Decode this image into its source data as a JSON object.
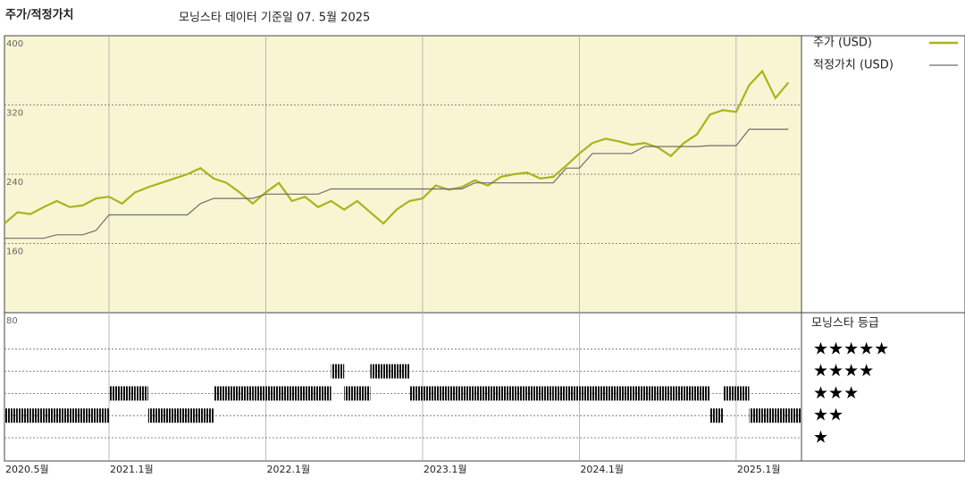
{
  "chart_data": [
    {
      "type": "line",
      "title": "주가/적정가치",
      "subtitle": "모닝스타 데이터 기준일 07. 5월 2025",
      "x": [
        "2020-05",
        "2020-06",
        "2020-07",
        "2020-08",
        "2020-09",
        "2020-10",
        "2020-11",
        "2020-12",
        "2021-01",
        "2021-02",
        "2021-03",
        "2021-04",
        "2021-05",
        "2021-06",
        "2021-07",
        "2021-08",
        "2021-09",
        "2021-10",
        "2021-11",
        "2021-12",
        "2022-01",
        "2022-02",
        "2022-03",
        "2022-04",
        "2022-05",
        "2022-06",
        "2022-07",
        "2022-08",
        "2022-09",
        "2022-10",
        "2022-11",
        "2022-12",
        "2023-01",
        "2023-02",
        "2023-03",
        "2023-04",
        "2023-05",
        "2023-06",
        "2023-07",
        "2023-08",
        "2023-09",
        "2023-10",
        "2023-11",
        "2023-12",
        "2024-01",
        "2024-02",
        "2024-03",
        "2024-04",
        "2024-05",
        "2024-06",
        "2024-07",
        "2024-08",
        "2024-09",
        "2024-10",
        "2024-11",
        "2024-12",
        "2025-01",
        "2025-02",
        "2025-03",
        "2025-04",
        "2025-05"
      ],
      "series": [
        {
          "name": "주가 (USD)",
          "color": "#a8b41e",
          "values": [
            183,
            196,
            194,
            202,
            209,
            202,
            204,
            212,
            214,
            206,
            219,
            225,
            230,
            235,
            240,
            247,
            235,
            230,
            219,
            206,
            219,
            230,
            209,
            214,
            202,
            209,
            199,
            209,
            196,
            183,
            199,
            209,
            212,
            227,
            222,
            225,
            233,
            227,
            237,
            240,
            242,
            235,
            237,
            250,
            264,
            276,
            281,
            278,
            274,
            276,
            271,
            261,
            276,
            286,
            309,
            314,
            312,
            343,
            359,
            328,
            346
          ]
        },
        {
          "name": "적정가치 (USD)",
          "color": "#6e6e6e",
          "values": [
            166,
            166,
            166,
            166,
            170,
            170,
            170,
            175,
            193,
            193,
            193,
            193,
            193,
            193,
            193,
            206,
            212,
            212,
            212,
            212,
            217,
            217,
            217,
            217,
            217,
            223,
            223,
            223,
            223,
            223,
            223,
            223,
            223,
            223,
            223,
            223,
            230,
            230,
            230,
            230,
            230,
            230,
            230,
            247,
            247,
            264,
            264,
            264,
            264,
            272,
            272,
            272,
            272,
            272,
            273,
            273,
            273,
            292,
            292,
            292,
            292
          ]
        }
      ],
      "xlim": [
        "2020-05",
        "2025-06"
      ],
      "xticks": [
        {
          "value": "2020-05",
          "label": "2020.5월"
        },
        {
          "value": "2021-01",
          "label": "2021.1월"
        },
        {
          "value": "2022-01",
          "label": "2022.1월"
        },
        {
          "value": "2023-01",
          "label": "2023.1월"
        },
        {
          "value": "2024-01",
          "label": "2024.1월"
        },
        {
          "value": "2025-01",
          "label": "2025.1월"
        }
      ],
      "ylim": [
        80,
        400
      ],
      "yticks": [
        80,
        160,
        240,
        320,
        400
      ],
      "grid": true,
      "legend": "right"
    },
    {
      "type": "rating",
      "title": "모닝스타 등급",
      "levels": [
        "★",
        "★★",
        "★★★",
        "★★★★",
        "★★★★★"
      ],
      "x": [
        "2020-05",
        "2020-06",
        "2020-07",
        "2020-08",
        "2020-09",
        "2020-10",
        "2020-11",
        "2020-12",
        "2021-01",
        "2021-02",
        "2021-03",
        "2021-04",
        "2021-05",
        "2021-06",
        "2021-07",
        "2021-08",
        "2021-09",
        "2021-10",
        "2021-11",
        "2021-12",
        "2022-01",
        "2022-02",
        "2022-03",
        "2022-04",
        "2022-05",
        "2022-06",
        "2022-07",
        "2022-08",
        "2022-09",
        "2022-10",
        "2022-11",
        "2022-12",
        "2023-01",
        "2023-02",
        "2023-03",
        "2023-04",
        "2023-05",
        "2023-06",
        "2023-07",
        "2023-08",
        "2023-09",
        "2023-10",
        "2023-11",
        "2023-12",
        "2024-01",
        "2024-02",
        "2024-03",
        "2024-04",
        "2024-05",
        "2024-06",
        "2024-07",
        "2024-08",
        "2024-09",
        "2024-10",
        "2024-11",
        "2024-12",
        "2025-01",
        "2025-02",
        "2025-03",
        "2025-04",
        "2025-05"
      ],
      "values": [
        2,
        2,
        2,
        2,
        2,
        2,
        2,
        2,
        3,
        3,
        3,
        2,
        2,
        2,
        2,
        2,
        3,
        3,
        3,
        3,
        3,
        3,
        3,
        3,
        3,
        4,
        3,
        3,
        4,
        4,
        4,
        3,
        3,
        3,
        3,
        3,
        3,
        3,
        3,
        3,
        3,
        3,
        3,
        3,
        3,
        3,
        3,
        3,
        3,
        3,
        3,
        3,
        3,
        3,
        2,
        3,
        3,
        2,
        2,
        2,
        2
      ],
      "color": "#111111"
    }
  ]
}
